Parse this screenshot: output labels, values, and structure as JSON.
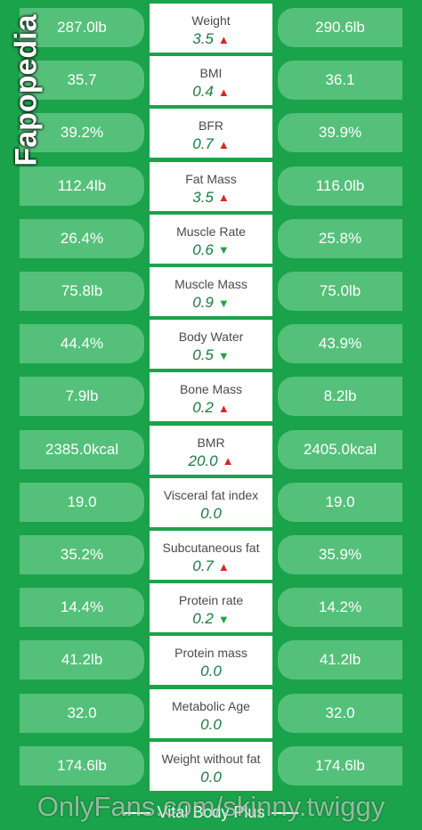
{
  "rows": [
    {
      "left": "287.0lb",
      "label": "Weight",
      "value": "3.5",
      "dir": "up",
      "right": "290.6lb"
    },
    {
      "left": "35.7",
      "label": "BMI",
      "value": "0.4",
      "dir": "up",
      "right": "36.1"
    },
    {
      "left": "39.2%",
      "label": "BFR",
      "value": "0.7",
      "dir": "up",
      "right": "39.9%"
    },
    {
      "left": "112.4lb",
      "label": "Fat Mass",
      "value": "3.5",
      "dir": "up",
      "right": "116.0lb"
    },
    {
      "left": "26.4%",
      "label": "Muscle Rate",
      "value": "0.6",
      "dir": "down",
      "right": "25.8%"
    },
    {
      "left": "75.8lb",
      "label": "Muscle Mass",
      "value": "0.9",
      "dir": "down",
      "right": "75.0lb"
    },
    {
      "left": "44.4%",
      "label": "Body Water",
      "value": "0.5",
      "dir": "down",
      "right": "43.9%"
    },
    {
      "left": "7.9lb",
      "label": "Bone Mass",
      "value": "0.2",
      "dir": "up",
      "right": "8.2lb"
    },
    {
      "left": "2385.0kcal",
      "label": "BMR",
      "value": "20.0",
      "dir": "up",
      "right": "2405.0kcal"
    },
    {
      "left": "19.0",
      "label": "Visceral fat index",
      "value": "0.0",
      "dir": "none",
      "right": "19.0"
    },
    {
      "left": "35.2%",
      "label": "Subcutaneous fat",
      "value": "0.7",
      "dir": "up",
      "right": "35.9%"
    },
    {
      "left": "14.4%",
      "label": "Protein rate",
      "value": "0.2",
      "dir": "down",
      "right": "14.2%"
    },
    {
      "left": "41.2lb",
      "label": "Protein mass",
      "value": "0.0",
      "dir": "none",
      "right": "41.2lb"
    },
    {
      "left": "32.0",
      "label": "Metabolic Age",
      "value": "0.0",
      "dir": "none",
      "right": "32.0"
    },
    {
      "left": "174.6lb",
      "label": "Weight without fat",
      "value": "0.0",
      "dir": "none",
      "right": "174.6lb"
    }
  ],
  "arrows": {
    "up": "▲",
    "down": "▼",
    "none": ""
  },
  "footer": {
    "title": "Vital Body Plus"
  },
  "watermarks": {
    "side": "Fapopedia",
    "bottom": "OnlyFans.com/skinny.twiggy"
  },
  "colors": {
    "background": "#1aa34a",
    "pill": "#55c07a",
    "value_text": "#1b7a43",
    "arrow_up": "#d62828",
    "arrow_down": "#20a348"
  }
}
